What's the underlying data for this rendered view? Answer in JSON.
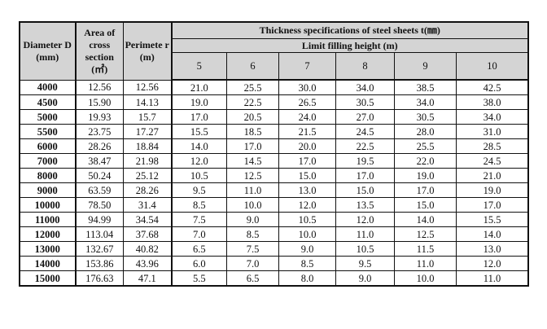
{
  "headers": {
    "diameter": "Diameter D (mm)",
    "area": "Area of cross section (㎡)",
    "perimeter": "Perimete r (m)",
    "thickness": "Thickness specifications of steel sheets t(㎜)",
    "limit": "Limit filling height (m)",
    "heights": [
      "5",
      "6",
      "7",
      "8",
      "9",
      "10"
    ]
  },
  "rows": [
    [
      "4000",
      "12.56",
      "12.56",
      "21.0",
      "25.5",
      "30.0",
      "34.0",
      "38.5",
      "42.5"
    ],
    [
      "4500",
      "15.90",
      "14.13",
      "19.0",
      "22.5",
      "26.5",
      "30.5",
      "34.0",
      "38.0"
    ],
    [
      "5000",
      "19.93",
      "15.7",
      "17.0",
      "20.5",
      "24.0",
      "27.0",
      "30.5",
      "34.0"
    ],
    [
      "5500",
      "23.75",
      "17.27",
      "15.5",
      "18.5",
      "21.5",
      "24.5",
      "28.0",
      "31.0"
    ],
    [
      "6000",
      "28.26",
      "18.84",
      "14.0",
      "17.0",
      "20.0",
      "22.5",
      "25.5",
      "28.5"
    ],
    [
      "7000",
      "38.47",
      "21.98",
      "12.0",
      "14.5",
      "17.0",
      "19.5",
      "22.0",
      "24.5"
    ],
    [
      "8000",
      "50.24",
      "25.12",
      "10.5",
      "12.5",
      "15.0",
      "17.0",
      "19.0",
      "21.0"
    ],
    [
      "9000",
      "63.59",
      "28.26",
      "9.5",
      "11.0",
      "13.0",
      "15.0",
      "17.0",
      "19.0"
    ],
    [
      "10000",
      "78.50",
      "31.4",
      "8.5",
      "10.0",
      "12.0",
      "13.5",
      "15.0",
      "17.0"
    ],
    [
      "11000",
      "94.99",
      "34.54",
      "7.5",
      "9.0",
      "10.5",
      "12.0",
      "14.0",
      "15.5"
    ],
    [
      "12000",
      "113.04",
      "37.68",
      "7.0",
      "8.5",
      "10.0",
      "11.0",
      "12.5",
      "14.0"
    ],
    [
      "13000",
      "132.67",
      "40.82",
      "6.5",
      "7.5",
      "9.0",
      "10.5",
      "11.5",
      "13.0"
    ],
    [
      "14000",
      "153.86",
      "43.96",
      "6.0",
      "7.0",
      "8.5",
      "9.5",
      "11.0",
      "12.0"
    ],
    [
      "15000",
      "176.63",
      "47.1",
      "5.5",
      "6.5",
      "8.0",
      "9.0",
      "10.0",
      "11.0"
    ]
  ]
}
